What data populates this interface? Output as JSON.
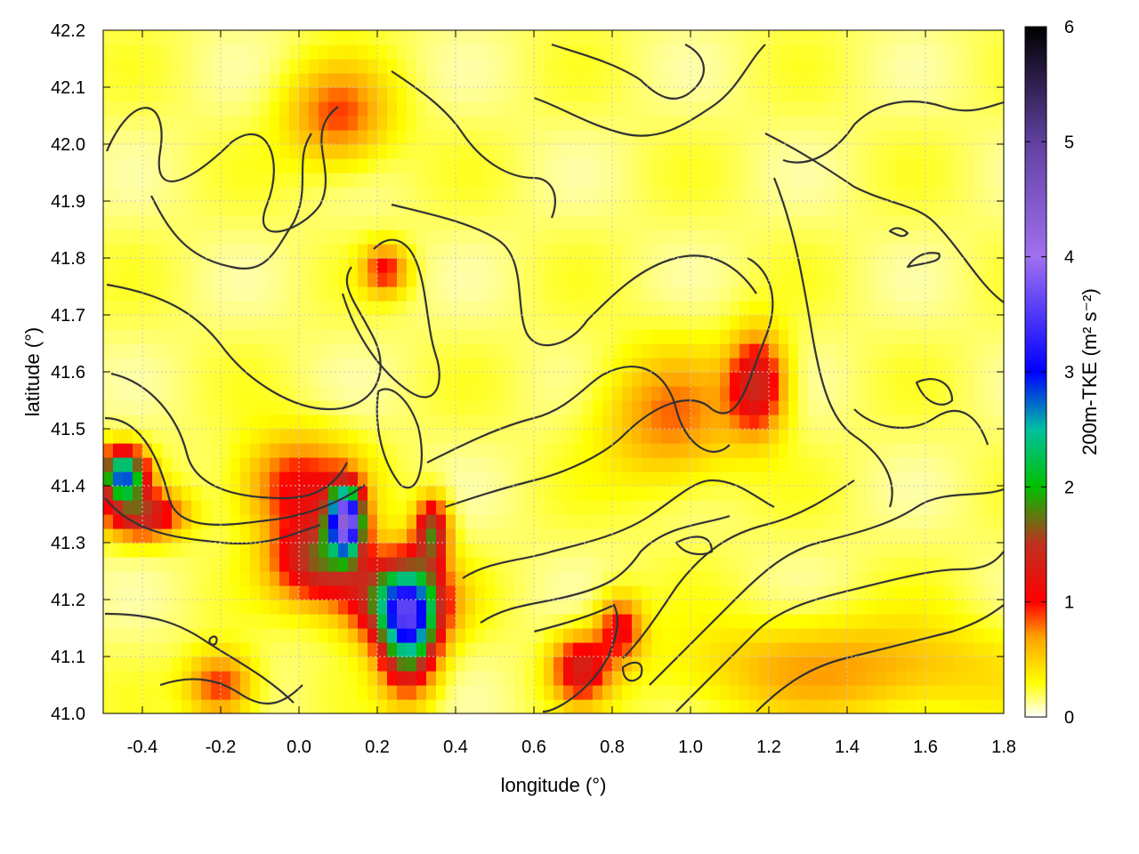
{
  "chart_data": {
    "type": "heatmap",
    "title": "",
    "xlabel": "longitude (°)",
    "ylabel": "latitude (°)",
    "xlim": [
      -0.5,
      1.8
    ],
    "ylim": [
      41.0,
      42.2
    ],
    "xticks": [
      "-0.4",
      "-0.2",
      "0.0",
      "0.2",
      "0.4",
      "0.6",
      "0.8",
      "1.0",
      "1.2",
      "1.4",
      "1.6",
      "1.8"
    ],
    "xtick_values": [
      -0.4,
      -0.2,
      0.0,
      0.2,
      0.4,
      0.6,
      0.8,
      1.0,
      1.2,
      1.4,
      1.6,
      1.8
    ],
    "yticks": [
      "41.0",
      "41.1",
      "41.2",
      "41.3",
      "41.4",
      "41.5",
      "41.6",
      "41.7",
      "41.8",
      "41.9",
      "42.0",
      "42.1",
      "42.2"
    ],
    "ytick_values": [
      41.0,
      41.1,
      41.2,
      41.3,
      41.4,
      41.5,
      41.6,
      41.7,
      41.8,
      41.9,
      42.0,
      42.1,
      42.2
    ],
    "grid": true,
    "colorbar": {
      "label": "200m-TKE (m² s⁻²)",
      "range": [
        0,
        6
      ],
      "ticks": [
        "0",
        "1",
        "2",
        "3",
        "4",
        "5",
        "6"
      ],
      "tick_values": [
        0,
        1,
        2,
        3,
        4,
        5,
        6
      ],
      "stops": [
        {
          "value": 0.0,
          "color": "#ffffff"
        },
        {
          "value": 0.3,
          "color": "#ffff00"
        },
        {
          "value": 0.7,
          "color": "#ffa000"
        },
        {
          "value": 1.0,
          "color": "#ff0000"
        },
        {
          "value": 1.5,
          "color": "#c03020"
        },
        {
          "value": 2.0,
          "color": "#00c000"
        },
        {
          "value": 2.5,
          "color": "#00c0a0"
        },
        {
          "value": 3.0,
          "color": "#0000ff"
        },
        {
          "value": 4.0,
          "color": "#a070f0"
        },
        {
          "value": 5.0,
          "color": "#6040a0"
        },
        {
          "value": 6.0,
          "color": "#000000"
        }
      ]
    },
    "hotspots": [
      {
        "lon": 0.28,
        "lat": 41.15,
        "tke": 2.3,
        "sx": 0.05,
        "sy": 0.07
      },
      {
        "lon": 0.25,
        "lat": 41.2,
        "tke": 1.6,
        "sx": 0.09,
        "sy": 0.05
      },
      {
        "lon": 0.12,
        "lat": 41.34,
        "tke": 3.5,
        "sx": 0.03,
        "sy": 0.04
      },
      {
        "lon": 0.05,
        "lat": 41.27,
        "tke": 1.4,
        "sx": 0.08,
        "sy": 0.05
      },
      {
        "lon": -0.45,
        "lat": 41.42,
        "tke": 2.6,
        "sx": 0.04,
        "sy": 0.03
      },
      {
        "lon": -0.4,
        "lat": 41.35,
        "tke": 1.3,
        "sx": 0.07,
        "sy": 0.03
      },
      {
        "lon": 0.34,
        "lat": 41.32,
        "tke": 1.5,
        "sx": 0.03,
        "sy": 0.04
      },
      {
        "lon": 0.0,
        "lat": 41.4,
        "tke": 0.9,
        "sx": 0.1,
        "sy": 0.06
      },
      {
        "lon": 1.17,
        "lat": 41.58,
        "tke": 1.2,
        "sx": 0.05,
        "sy": 0.06
      },
      {
        "lon": 0.72,
        "lat": 41.08,
        "tke": 1.1,
        "sx": 0.05,
        "sy": 0.04
      },
      {
        "lon": 0.82,
        "lat": 41.15,
        "tke": 0.9,
        "sx": 0.04,
        "sy": 0.04
      },
      {
        "lon": -0.2,
        "lat": 41.05,
        "tke": 0.8,
        "sx": 0.06,
        "sy": 0.04
      },
      {
        "lon": 0.1,
        "lat": 42.05,
        "tke": 0.7,
        "sx": 0.09,
        "sy": 0.06
      },
      {
        "lon": 0.22,
        "lat": 41.78,
        "tke": 0.8,
        "sx": 0.04,
        "sy": 0.03
      },
      {
        "lon": 0.95,
        "lat": 41.52,
        "tke": 0.6,
        "sx": 0.12,
        "sy": 0.08
      },
      {
        "lon": 1.4,
        "lat": 41.08,
        "tke": 0.5,
        "sx": 0.3,
        "sy": 0.06
      }
    ]
  }
}
